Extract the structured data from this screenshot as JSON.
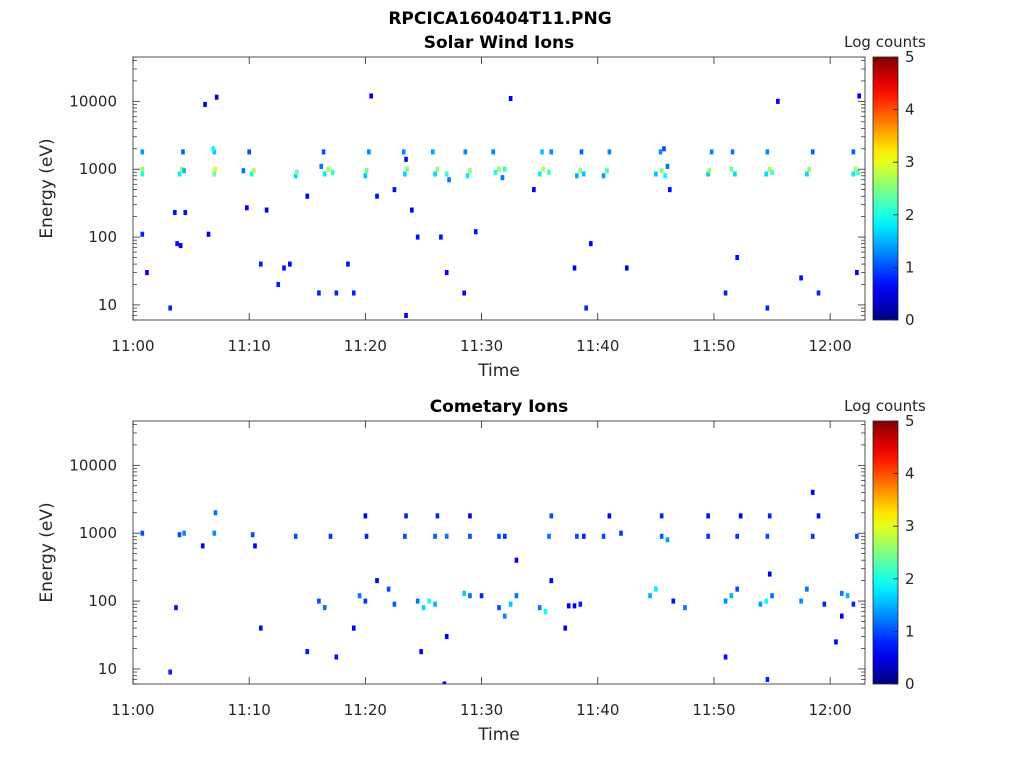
{
  "figure": {
    "title": "RPCICA160404T11.PNG"
  },
  "chart_data": [
    {
      "type": "heatmap",
      "title": "Solar Wind Ions",
      "xlabel": "Time",
      "ylabel": "Energy (eV)",
      "y_scale": "log",
      "xlim": [
        "11:00",
        "12:03"
      ],
      "ylim": [
        6,
        45000
      ],
      "x_ticks": [
        "11:00",
        "11:10",
        "11:20",
        "11:30",
        "11:40",
        "11:50",
        "12:00"
      ],
      "y_ticks": [
        10,
        100,
        1000,
        10000
      ],
      "y_tick_labels": [
        "10",
        "100",
        "1000",
        "10000"
      ],
      "colorbar": {
        "label": "Log counts",
        "min": 0,
        "max": 5,
        "ticks": [
          "0",
          "1",
          "2",
          "3",
          "4",
          "5"
        ],
        "colormap": "jet"
      },
      "cells": [
        [
          "11:00.8",
          850,
          2.0
        ],
        [
          "11:00.8",
          1000,
          2.6
        ],
        [
          "11:00.8",
          1800,
          1.4
        ],
        [
          "11:00.8",
          110,
          0.8
        ],
        [
          "11:01.2",
          30,
          0.6
        ],
        [
          "11:03.2",
          9,
          0.8
        ],
        [
          "11:03.6",
          230,
          0.7
        ],
        [
          "11:03.8",
          80,
          0.7
        ],
        [
          "11:04.0",
          850,
          1.8
        ],
        [
          "11:04.2",
          1000,
          2.6
        ],
        [
          "11:04.4",
          950,
          1.5
        ],
        [
          "11:04.3",
          1800,
          1.1
        ],
        [
          "11:04.5",
          230,
          0.7
        ],
        [
          "11:04.1",
          75,
          0.6
        ],
        [
          "11:07.0",
          850,
          2.4
        ],
        [
          "11:07.1",
          1000,
          2.9
        ],
        [
          "11:07.0",
          1800,
          1.6
        ],
        [
          "11:06.9",
          2000,
          1.9
        ],
        [
          "11:06.5",
          110,
          0.6
        ],
        [
          "11:06.2",
          9000,
          0.5
        ],
        [
          "11:07.2",
          11500,
          0.5
        ],
        [
          "11:09.5",
          950,
          1.2
        ],
        [
          "11:10.2",
          850,
          1.9
        ],
        [
          "11:10.4",
          950,
          2.7
        ],
        [
          "11:10.0",
          1800,
          1.0
        ],
        [
          "11:11.0",
          40,
          0.8
        ],
        [
          "11:09.8",
          270,
          0.6
        ],
        [
          "11:11.5",
          250,
          0.6
        ],
        [
          "11:12.5",
          20,
          0.8
        ],
        [
          "11:13.0",
          35,
          0.7
        ],
        [
          "11:13.5",
          40,
          0.6
        ],
        [
          "11:14.0",
          800,
          1.7
        ],
        [
          "11:14.1",
          900,
          2.4
        ],
        [
          "11:15.0",
          400,
          0.6
        ],
        [
          "11:16.5",
          850,
          1.8
        ],
        [
          "11:16.8",
          1000,
          2.7
        ],
        [
          "11:17.2",
          900,
          2.1
        ],
        [
          "11:16.2",
          1100,
          1.2
        ],
        [
          "11:16.4",
          1800,
          1.0
        ],
        [
          "11:16.0",
          15,
          0.8
        ],
        [
          "11:17.5",
          15,
          0.8
        ],
        [
          "11:19.0",
          15,
          0.8
        ],
        [
          "11:18.5",
          40,
          0.7
        ],
        [
          "11:20.0",
          800,
          1.6
        ],
        [
          "11:20.1",
          950,
          2.4
        ],
        [
          "11:20.3",
          1800,
          1.3
        ],
        [
          "11:20.5",
          12000,
          0.6
        ],
        [
          "11:21.0",
          400,
          0.7
        ],
        [
          "11:22.5",
          500,
          0.7
        ],
        [
          "11:23.5",
          7,
          0.6
        ],
        [
          "11:23.5",
          1400,
          0.7
        ],
        [
          "11:23.4",
          850,
          1.7
        ],
        [
          "11:23.6",
          1000,
          2.5
        ],
        [
          "11:23.3",
          1800,
          1.3
        ],
        [
          "11:24.5",
          100,
          0.7
        ],
        [
          "11:24.0",
          250,
          0.6
        ],
        [
          "11:26.0",
          850,
          1.7
        ],
        [
          "11:26.2",
          1000,
          2.6
        ],
        [
          "11:25.8",
          1800,
          1.4
        ],
        [
          "11:27.0",
          850,
          2.1
        ],
        [
          "11:27.2",
          700,
          1.2
        ],
        [
          "11:26.5",
          100,
          0.7
        ],
        [
          "11:27.0",
          30,
          0.6
        ],
        [
          "11:28.5",
          15,
          0.7
        ],
        [
          "11:28.8",
          800,
          1.8
        ],
        [
          "11:29.0",
          950,
          2.6
        ],
        [
          "11:28.6",
          1800,
          1.3
        ],
        [
          "11:29.5",
          120,
          0.7
        ],
        [
          "11:31.2",
          900,
          2.0
        ],
        [
          "11:31.5",
          1000,
          2.6
        ],
        [
          "11:31.0",
          1800,
          1.3
        ],
        [
          "11:31.8",
          750,
          1.2
        ],
        [
          "11:32.0",
          1000,
          2.1
        ],
        [
          "11:32.5",
          11000,
          0.6
        ],
        [
          "11:35.0",
          850,
          1.8
        ],
        [
          "11:35.3",
          1000,
          2.7
        ],
        [
          "11:35.8",
          900,
          2.2
        ],
        [
          "11:35.2",
          1800,
          1.6
        ],
        [
          "11:36.0",
          1800,
          1.3
        ],
        [
          "11:34.5",
          500,
          0.6
        ],
        [
          "11:38.2",
          800,
          1.5
        ],
        [
          "11:38.5",
          950,
          2.5
        ],
        [
          "11:38.8",
          850,
          1.6
        ],
        [
          "11:38.6",
          1800,
          1.1
        ],
        [
          "11:39.0",
          9,
          0.8
        ],
        [
          "11:39.4",
          80,
          0.6
        ],
        [
          "11:38.0",
          35,
          0.6
        ],
        [
          "11:40.5",
          800,
          1.4
        ],
        [
          "11:40.8",
          950,
          2.2
        ],
        [
          "11:41.0",
          1800,
          1.3
        ],
        [
          "11:42.5",
          35,
          0.6
        ],
        [
          "11:45.0",
          850,
          1.6
        ],
        [
          "11:45.5",
          950,
          2.6
        ],
        [
          "11:45.8",
          800,
          1.9
        ],
        [
          "11:45.4",
          1800,
          1.3
        ],
        [
          "11:45.7",
          2000,
          1.0
        ],
        [
          "11:46.0",
          1100,
          1.2
        ],
        [
          "11:46.2",
          500,
          0.7
        ],
        [
          "11:49.5",
          850,
          1.6
        ],
        [
          "11:49.6",
          950,
          2.6
        ],
        [
          "11:49.8",
          1800,
          1.3
        ],
        [
          "11:51.5",
          1000,
          2.4
        ],
        [
          "11:51.8",
          850,
          1.7
        ],
        [
          "11:51.6",
          1800,
          1.2
        ],
        [
          "11:51.0",
          15,
          0.8
        ],
        [
          "11:52.0",
          50,
          0.7
        ],
        [
          "11:54.5",
          850,
          1.7
        ],
        [
          "11:54.8",
          1000,
          2.7
        ],
        [
          "11:55.0",
          900,
          2.2
        ],
        [
          "11:54.6",
          1800,
          1.3
        ],
        [
          "11:54.6",
          9,
          0.8
        ],
        [
          "11:55.5",
          10000,
          0.6
        ],
        [
          "11:57.5",
          25,
          0.7
        ],
        [
          "11:58.0",
          850,
          1.7
        ],
        [
          "11:58.2",
          1000,
          2.6
        ],
        [
          "11:58.5",
          1800,
          1.1
        ],
        [
          "11:59.0",
          15,
          0.8
        ],
        [
          "12:02.0",
          850,
          1.8
        ],
        [
          "12:02.2",
          1000,
          2.7
        ],
        [
          "12:02.4",
          900,
          2.2
        ],
        [
          "12:02.0",
          1800,
          1.1
        ],
        [
          "12:02.5",
          12000,
          0.6
        ],
        [
          "12:02.3",
          30,
          0.6
        ]
      ]
    },
    {
      "type": "heatmap",
      "title": "Cometary Ions",
      "xlabel": "Time",
      "ylabel": "Energy (eV)",
      "y_scale": "log",
      "xlim": [
        "11:00",
        "12:03"
      ],
      "ylim": [
        6,
        45000
      ],
      "x_ticks": [
        "11:00",
        "11:10",
        "11:20",
        "11:30",
        "11:40",
        "11:50",
        "12:00"
      ],
      "y_ticks": [
        10,
        100,
        1000,
        10000
      ],
      "y_tick_labels": [
        "10",
        "100",
        "1000",
        "10000"
      ],
      "colorbar": {
        "label": "Log counts",
        "min": 0,
        "max": 5,
        "ticks": [
          "0",
          "1",
          "2",
          "3",
          "4",
          "5"
        ],
        "colormap": "jet"
      },
      "cells": [
        [
          "11:00.8",
          1000,
          1.0
        ],
        [
          "11:03.2",
          9,
          0.8
        ],
        [
          "11:03.7",
          80,
          0.7
        ],
        [
          "11:04.0",
          950,
          1.0
        ],
        [
          "11:04.4",
          1000,
          1.3
        ],
        [
          "11:06.0",
          650,
          0.6
        ],
        [
          "11:07.0",
          1000,
          1.3
        ],
        [
          "11:07.1",
          2000,
          1.2
        ],
        [
          "11:10.3",
          950,
          1.0
        ],
        [
          "11:10.5",
          650,
          0.6
        ],
        [
          "11:11.0",
          40,
          0.7
        ],
        [
          "11:14.0",
          900,
          1.0
        ],
        [
          "11:15.0",
          18,
          0.7
        ],
        [
          "11:16.0",
          100,
          1.0
        ],
        [
          "11:16.5",
          80,
          1.2
        ],
        [
          "11:17.0",
          900,
          0.9
        ],
        [
          "11:17.5",
          15,
          0.7
        ],
        [
          "11:19.5",
          120,
          1.2
        ],
        [
          "11:20.0",
          100,
          0.9
        ],
        [
          "11:20.1",
          900,
          0.8
        ],
        [
          "11:20.0",
          1800,
          0.6
        ],
        [
          "11:21.0",
          200,
          0.6
        ],
        [
          "11:19.0",
          40,
          0.6
        ],
        [
          "11:22.0",
          150,
          1.0
        ],
        [
          "11:22.5",
          90,
          1.1
        ],
        [
          "11:23.4",
          900,
          1.0
        ],
        [
          "11:23.5",
          1800,
          0.8
        ],
        [
          "11:24.5",
          100,
          1.2
        ],
        [
          "11:25.0",
          80,
          1.7
        ],
        [
          "11:25.5",
          100,
          2.0
        ],
        [
          "11:26.0",
          90,
          1.5
        ],
        [
          "11:24.8",
          18,
          0.6
        ],
        [
          "11:26.0",
          900,
          1.1
        ],
        [
          "11:26.2",
          1800,
          0.8
        ],
        [
          "11:27.0",
          900,
          1.2
        ],
        [
          "11:27.0",
          30,
          0.6
        ],
        [
          "11:26.8",
          6,
          0.6
        ],
        [
          "11:28.5",
          130,
          1.6
        ],
        [
          "11:29.0",
          120,
          1.2
        ],
        [
          "11:29.0",
          900,
          1.0
        ],
        [
          "11:29.0",
          1800,
          0.6
        ],
        [
          "11:30.0",
          120,
          0.8
        ],
        [
          "11:31.5",
          80,
          1.0
        ],
        [
          "11:32.0",
          60,
          1.3
        ],
        [
          "11:32.5",
          90,
          1.6
        ],
        [
          "11:33.0",
          120,
          1.2
        ],
        [
          "11:33.0",
          400,
          0.6
        ],
        [
          "11:31.5",
          900,
          1.0
        ],
        [
          "11:32.0",
          900,
          0.9
        ],
        [
          "11:35.0",
          80,
          1.2
        ],
        [
          "11:35.5",
          70,
          1.9
        ],
        [
          "11:35.8",
          900,
          1.2
        ],
        [
          "11:36.0",
          1800,
          1.0
        ],
        [
          "11:36.0",
          200,
          0.6
        ],
        [
          "11:37.5",
          85,
          0.6
        ],
        [
          "11:38.0",
          85,
          0.6
        ],
        [
          "11:38.5",
          90,
          0.8
        ],
        [
          "11:37.2",
          40,
          0.6
        ],
        [
          "11:38.2",
          900,
          1.0
        ],
        [
          "11:38.8",
          900,
          0.8
        ],
        [
          "11:40.5",
          900,
          1.0
        ],
        [
          "11:41.0",
          1800,
          0.6
        ],
        [
          "11:42.0",
          1000,
          0.9
        ],
        [
          "11:44.5",
          120,
          1.5
        ],
        [
          "11:45.0",
          150,
          1.8
        ],
        [
          "11:45.5",
          900,
          1.1
        ],
        [
          "11:46.0",
          800,
          1.4
        ],
        [
          "11:45.5",
          1800,
          0.8
        ],
        [
          "11:46.5",
          100,
          0.7
        ],
        [
          "11:47.5",
          80,
          1.2
        ],
        [
          "11:49.5",
          900,
          0.9
        ],
        [
          "11:49.5",
          1800,
          0.7
        ],
        [
          "11:51.0",
          100,
          1.3
        ],
        [
          "11:51.5",
          120,
          1.5
        ],
        [
          "11:52.0",
          150,
          1.0
        ],
        [
          "11:51.0",
          15,
          0.7
        ],
        [
          "11:52.0",
          900,
          0.9
        ],
        [
          "11:52.3",
          1800,
          0.6
        ],
        [
          "11:54.0",
          90,
          1.4
        ],
        [
          "11:54.5",
          100,
          1.9
        ],
        [
          "11:55.0",
          120,
          1.2
        ],
        [
          "11:54.6",
          900,
          1.0
        ],
        [
          "11:54.8",
          1800,
          0.8
        ],
        [
          "11:54.6",
          7,
          0.8
        ],
        [
          "11:54.8",
          250,
          0.6
        ],
        [
          "11:57.5",
          100,
          1.3
        ],
        [
          "11:58.0",
          150,
          1.2
        ],
        [
          "11:58.5",
          900,
          0.9
        ],
        [
          "11:58.5",
          4000,
          0.6
        ],
        [
          "11:59.0",
          1800,
          0.7
        ],
        [
          "11:59.5",
          90,
          0.8
        ],
        [
          "12:00.5",
          25,
          0.6
        ],
        [
          "12:01.0",
          130,
          1.2
        ],
        [
          "12:01.5",
          120,
          1.5
        ],
        [
          "12:02.0",
          90,
          0.8
        ],
        [
          "12:02.3",
          900,
          1.0
        ],
        [
          "12:01.0",
          60,
          0.6
        ]
      ]
    }
  ]
}
